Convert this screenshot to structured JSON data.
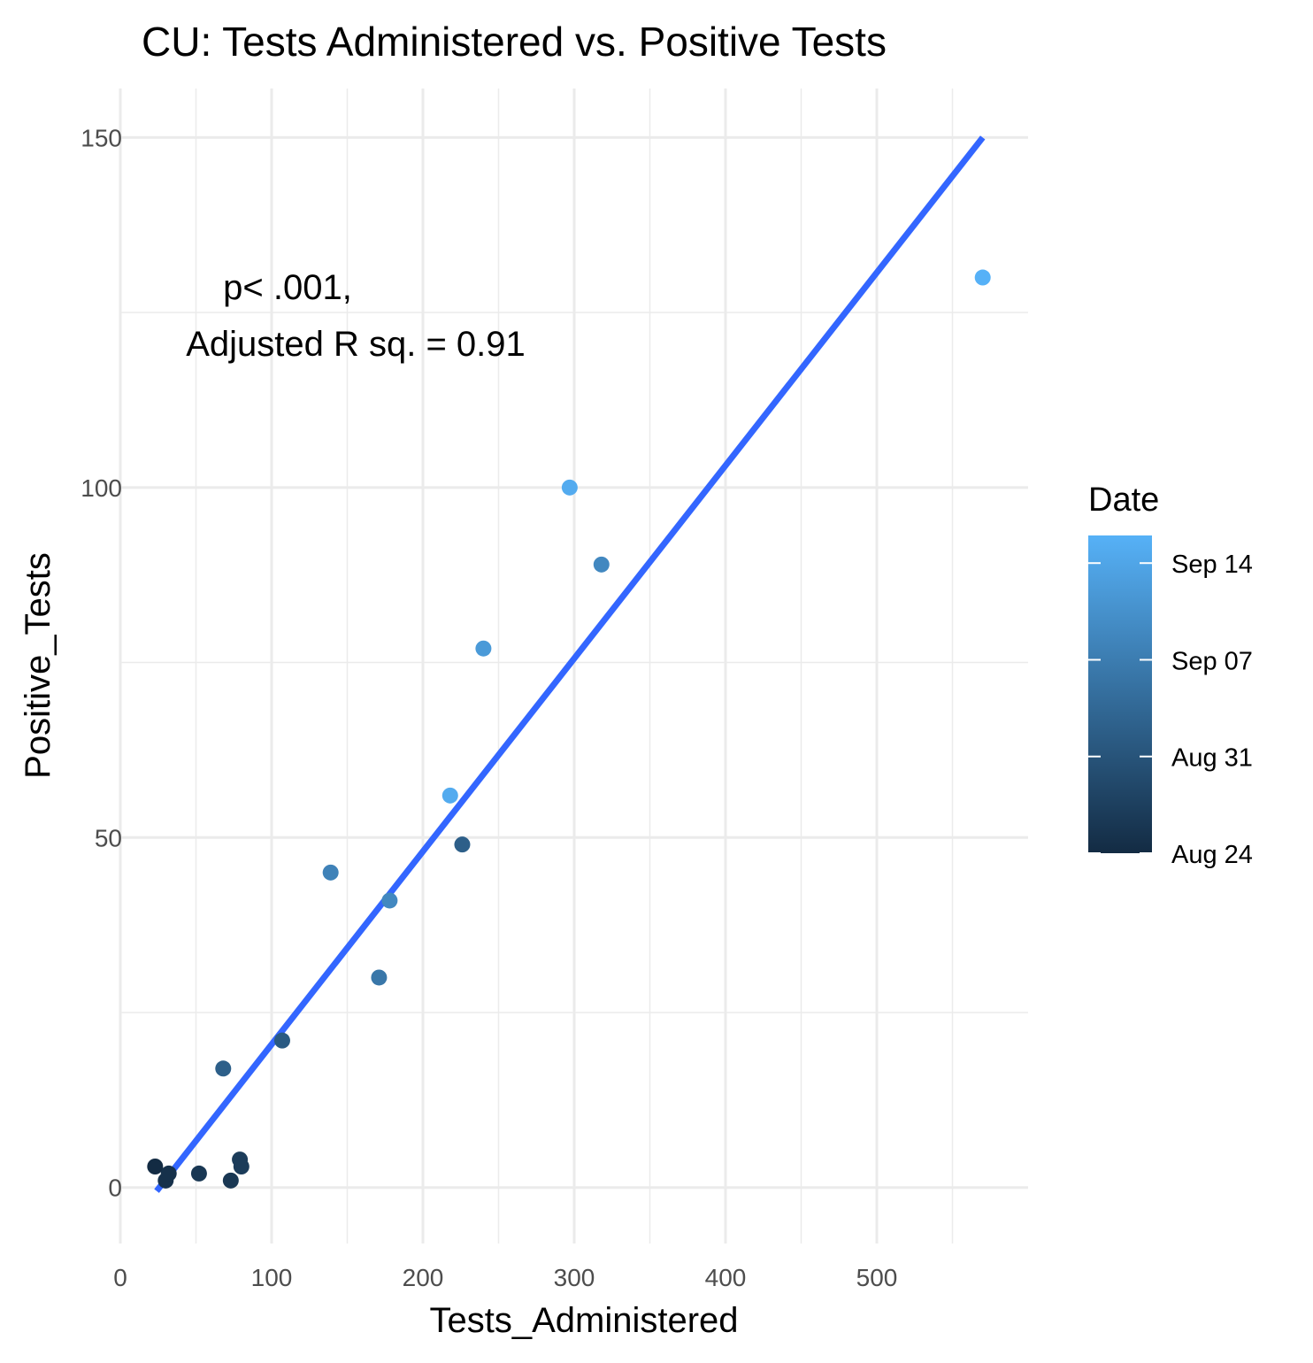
{
  "chart_data": {
    "type": "scatter",
    "title": "CU: Tests Administered vs. Positive Tests",
    "xlabel": "Tests_Administered",
    "ylabel": "Positive_Tests",
    "xlim": [
      0,
      600
    ],
    "ylim": [
      -8,
      157
    ],
    "x_ticks": [
      0,
      100,
      200,
      300,
      400,
      500
    ],
    "y_ticks": [
      0,
      50,
      100,
      150
    ],
    "grid": true,
    "points": [
      {
        "x": 23,
        "y": 3,
        "date": "Aug 24"
      },
      {
        "x": 30,
        "y": 1,
        "date": "Aug 25"
      },
      {
        "x": 32,
        "y": 2,
        "date": "Aug 25"
      },
      {
        "x": 52,
        "y": 2,
        "date": "Aug 26"
      },
      {
        "x": 73,
        "y": 1,
        "date": "Aug 26"
      },
      {
        "x": 79,
        "y": 4,
        "date": "Aug 27"
      },
      {
        "x": 80,
        "y": 3,
        "date": "Aug 27"
      },
      {
        "x": 68,
        "y": 17,
        "date": "Sep 02"
      },
      {
        "x": 107,
        "y": 21,
        "date": "Sep 01"
      },
      {
        "x": 139,
        "y": 45,
        "date": "Sep 08"
      },
      {
        "x": 171,
        "y": 30,
        "date": "Sep 06"
      },
      {
        "x": 178,
        "y": 41,
        "date": "Sep 09"
      },
      {
        "x": 226,
        "y": 49,
        "date": "Sep 02"
      },
      {
        "x": 218,
        "y": 56,
        "date": "Sep 15"
      },
      {
        "x": 240,
        "y": 77,
        "date": "Sep 12"
      },
      {
        "x": 297,
        "y": 100,
        "date": "Sep 15"
      },
      {
        "x": 318,
        "y": 89,
        "date": "Sep 09"
      },
      {
        "x": 570,
        "y": 130,
        "date": "Sep 16"
      }
    ],
    "trend_line": {
      "x": [
        24,
        570
      ],
      "y": [
        -0.5,
        150
      ],
      "color": "#3366FF"
    },
    "annotation": {
      "line1": "p< .001,",
      "line2": "Adjusted R sq. = 0.91"
    },
    "legend": {
      "title": "Date",
      "placement": "right",
      "type": "colorbar",
      "labels": [
        "Aug 24",
        "Aug 31",
        "Sep 07",
        "Sep 14"
      ],
      "color_low": "#132B43",
      "color_high": "#56B1F7"
    }
  }
}
